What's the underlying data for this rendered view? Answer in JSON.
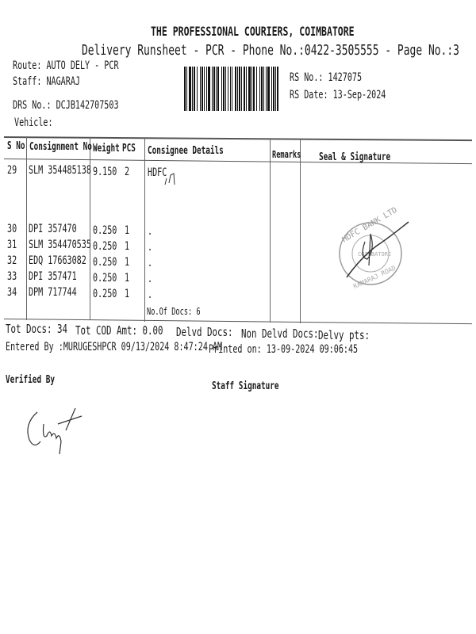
{
  "header": {
    "company": "THE PROFESSIONAL COURIERS, COIMBATORE",
    "subtitle": "Delivery Runsheet - PCR - Phone No.:0422-3505555 - Page No.:3",
    "route": "Route: AUTO DELY - PCR",
    "staff": "Staff: NAGARAJ",
    "drs_no": "DRS No.: DCJB142707503",
    "vehicle": "Vehicle:",
    "rs_no": "RS No.: 1427075",
    "rs_date": "RS Date: 13-Sep-2024"
  },
  "table": {
    "columns": [
      "S No",
      "Consignment No",
      "Weight",
      "PCS",
      "Consignee Details",
      "Remarks",
      "Seal & Signature"
    ],
    "rows": [
      {
        "sno": "29",
        "consignment": "SLM 354485138",
        "weight": "9.150",
        "pcs": "2",
        "consignee": "HDFC"
      },
      {
        "sno": "30",
        "consignment": "DPI 357470",
        "weight": "0.250",
        "pcs": "1",
        "consignee": "."
      },
      {
        "sno": "31",
        "consignment": "SLM 354470535",
        "weight": "0.250",
        "pcs": "1",
        "consignee": "."
      },
      {
        "sno": "32",
        "consignment": "EDQ 17663082",
        "weight": "0.250",
        "pcs": "1",
        "consignee": "."
      },
      {
        "sno": "33",
        "consignment": "DPI 357471",
        "weight": "0.250",
        "pcs": "1",
        "consignee": "."
      },
      {
        "sno": "34",
        "consignment": "DPM 717744",
        "weight": "0.250",
        "pcs": "1",
        "consignee": "."
      }
    ],
    "no_of_docs": "No.Of Docs: 6",
    "stamp_text": "HDFC BANK LTD COIMBATORE KAMARAJ ROAD"
  },
  "footer": {
    "tot_docs": "Tot Docs:  34",
    "tot_cod": "Tot COD Amt:   0.00",
    "delvd_docs": "Delvd Docs:",
    "non_delvd_docs": "Non Delvd Docs:",
    "delvy_pts": "Delvy pts:",
    "entered_by": "Entered By :MURUGESHPCR 09/13/2024 8:47:24 AM",
    "printed_on": "Printed on: 13-09-2024 09:06:45",
    "verified_by": "Verified By",
    "staff_signature": "Staff Signature"
  }
}
